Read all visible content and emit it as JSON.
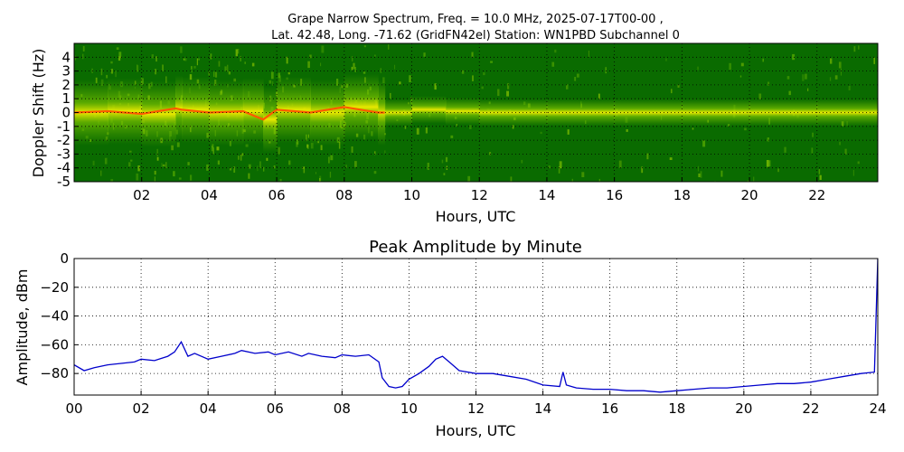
{
  "chart_data": [
    {
      "type": "heatmap",
      "title_line1": "Grape Narrow Spectrum, Freq. = 10.0 MHz, 2025-07-17T00-00 ,",
      "title_line2": "Lat.  42.48, Long. -71.62 (GridFN42el) Station: WN1PBD Subchannel 0",
      "xlabel": "Hours, UTC",
      "ylabel": "Doppler Shift (Hz)",
      "xlim": [
        0,
        23.8
      ],
      "ylim": [
        -5,
        5
      ],
      "x_ticks": [
        2,
        4,
        6,
        8,
        10,
        12,
        14,
        16,
        18,
        20,
        22
      ],
      "x_tick_labels": [
        "02",
        "04",
        "06",
        "08",
        "10",
        "12",
        "14",
        "16",
        "18",
        "20",
        "22"
      ],
      "y_ticks": [
        4,
        3,
        2,
        1,
        0,
        -1,
        -2,
        -3,
        -4,
        -5
      ],
      "y_tick_labels": [
        "4",
        "3",
        "2",
        "1",
        "0",
        "-1",
        "-2",
        "-3",
        "-4",
        "-5"
      ],
      "grid": true,
      "colors": {
        "background": "#0a6b00",
        "mid": "#5cae00",
        "high": "#e8e800",
        "peak": "#ff5a00"
      },
      "signal_trace": [
        [
          0.0,
          0.0
        ],
        [
          1.0,
          0.1
        ],
        [
          2.0,
          -0.1
        ],
        [
          3.0,
          0.3
        ],
        [
          3.2,
          0.2
        ],
        [
          4.0,
          0.0
        ],
        [
          5.0,
          0.1
        ],
        [
          5.6,
          -0.5
        ],
        [
          6.0,
          0.2
        ],
        [
          7.0,
          0.0
        ],
        [
          8.0,
          0.4
        ],
        [
          9.0,
          0.0
        ],
        [
          9.2,
          0.0
        ],
        [
          10.0,
          0.2
        ],
        [
          11.0,
          0.1
        ],
        [
          12.0,
          0.0
        ],
        [
          14.0,
          0.0
        ],
        [
          16.0,
          0.0
        ],
        [
          18.0,
          0.0
        ],
        [
          20.0,
          0.0
        ],
        [
          22.0,
          0.0
        ],
        [
          23.8,
          0.0
        ]
      ]
    },
    {
      "type": "line",
      "title": "Peak Amplitude by Minute",
      "xlabel": "Hours, UTC",
      "ylabel": "Amplitude, dBm",
      "xlim": [
        0,
        24
      ],
      "ylim": [
        -95,
        0
      ],
      "x_ticks": [
        0,
        2,
        4,
        6,
        8,
        10,
        12,
        14,
        16,
        18,
        20,
        22,
        24
      ],
      "x_tick_labels": [
        "00",
        "02",
        "04",
        "06",
        "08",
        "10",
        "12",
        "14",
        "16",
        "18",
        "20",
        "22",
        "24"
      ],
      "y_ticks": [
        0,
        -20,
        -40,
        -60,
        -80
      ],
      "y_tick_labels": [
        "0",
        "−20",
        "−40",
        "−60",
        "−80"
      ],
      "grid": true,
      "line_color": "#0000cc",
      "x": [
        0.0,
        0.3,
        0.6,
        1.0,
        1.4,
        1.8,
        2.0,
        2.4,
        2.8,
        3.0,
        3.2,
        3.4,
        3.6,
        4.0,
        4.4,
        4.8,
        5.0,
        5.4,
        5.8,
        6.0,
        6.4,
        6.8,
        7.0,
        7.4,
        7.8,
        8.0,
        8.4,
        8.8,
        9.1,
        9.2,
        9.4,
        9.6,
        9.8,
        10.0,
        10.3,
        10.6,
        10.8,
        11.0,
        11.2,
        11.5,
        12.0,
        12.5,
        13.0,
        13.5,
        14.0,
        14.5,
        14.6,
        14.7,
        15.0,
        15.5,
        16.0,
        16.5,
        17.0,
        17.5,
        18.0,
        18.5,
        19.0,
        19.5,
        20.0,
        20.5,
        21.0,
        21.5,
        22.0,
        22.5,
        23.0,
        23.5,
        23.9,
        24.0
      ],
      "y": [
        -74,
        -78,
        -76,
        -74,
        -73,
        -72,
        -70,
        -71,
        -68,
        -65,
        -58,
        -68,
        -66,
        -70,
        -68,
        -66,
        -64,
        -66,
        -65,
        -67,
        -65,
        -68,
        -66,
        -68,
        -69,
        -67,
        -68,
        -67,
        -72,
        -83,
        -89,
        -90,
        -89,
        -84,
        -80,
        -75,
        -70,
        -68,
        -72,
        -78,
        -80,
        -80,
        -82,
        -84,
        -88,
        -89,
        -79,
        -88,
        -90,
        -91,
        -91,
        -92,
        -92,
        -93,
        -92,
        -91,
        -90,
        -90,
        -89,
        -88,
        -87,
        -87,
        -86,
        -84,
        -82,
        -80,
        -79,
        0
      ]
    }
  ]
}
